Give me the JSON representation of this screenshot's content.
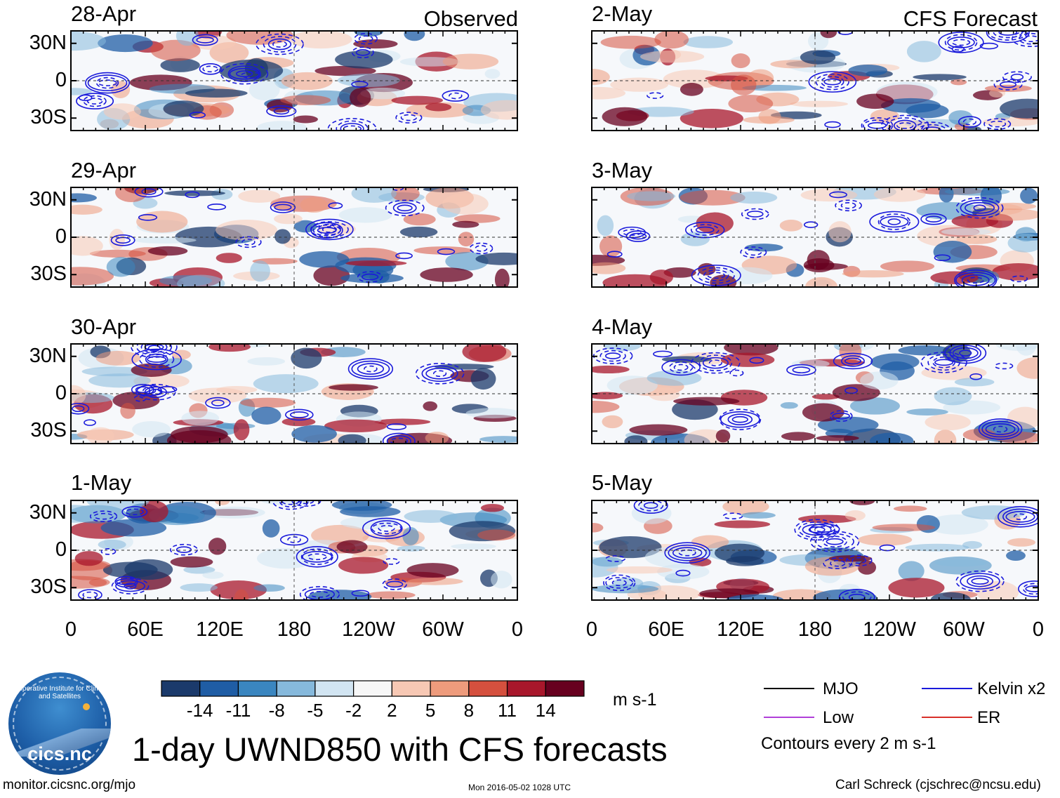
{
  "title": "1-day UWND850 with CFS forecasts",
  "labels": {
    "observed": "Observed",
    "forecast": "CFS Forecast"
  },
  "chart_data": {
    "type": "heatmap",
    "variable": "UWND850",
    "description_text": "1-day UWND850 with CFS forecasts",
    "panels": [
      {
        "date": "28-Apr",
        "source": "Observed"
      },
      {
        "date": "29-Apr",
        "source": "Observed"
      },
      {
        "date": "30-Apr",
        "source": "Observed"
      },
      {
        "date": "1-May",
        "source": "Observed"
      },
      {
        "date": "2-May",
        "source": "CFS Forecast"
      },
      {
        "date": "3-May",
        "source": "CFS Forecast"
      },
      {
        "date": "4-May",
        "source": "CFS Forecast"
      },
      {
        "date": "5-May",
        "source": "CFS Forecast"
      }
    ],
    "y_ticks": [
      "30N",
      "0",
      "30S"
    ],
    "y_tick_values": [
      30,
      0,
      -30
    ],
    "ylim": [
      -40,
      40
    ],
    "x_ticks": [
      "0",
      "60E",
      "120E",
      "180",
      "120W",
      "60W",
      "0"
    ],
    "x_tick_values": [
      0,
      60,
      120,
      180,
      240,
      300,
      360
    ],
    "xlim": [
      0,
      360
    ],
    "colorbar": {
      "levels": [
        "-14",
        "-11",
        "-8",
        "-5",
        "-2",
        "2",
        "5",
        "8",
        "11",
        "14"
      ],
      "colors": [
        "#1b3a6b",
        "#1f5da5",
        "#3a86c0",
        "#86b9dc",
        "#d2e5f2",
        "#f7f7f7",
        "#f7c8b4",
        "#ee9b7c",
        "#d5503e",
        "#a8172b",
        "#67001f"
      ],
      "units": "m s-1"
    },
    "legend": [
      {
        "label": "MJO",
        "color": "#000000"
      },
      {
        "label": "Kelvin x2",
        "color": "#1a1adb"
      },
      {
        "label": "Low",
        "color": "#b040d8"
      },
      {
        "label": "ER",
        "color": "#d8302a"
      }
    ],
    "contour_note": "Contours every 2 m s-1"
  },
  "footer": {
    "url": "monitor.cicsnc.org/mjo",
    "timestamp": "Mon 2016-05-02 1028 UTC",
    "credit": "Carl Schreck (cjschrec@ncsu.edu)"
  },
  "logo": {
    "text": "cics.nc",
    "arc_text": "Cooperative Institute for Climate and Satellites"
  }
}
